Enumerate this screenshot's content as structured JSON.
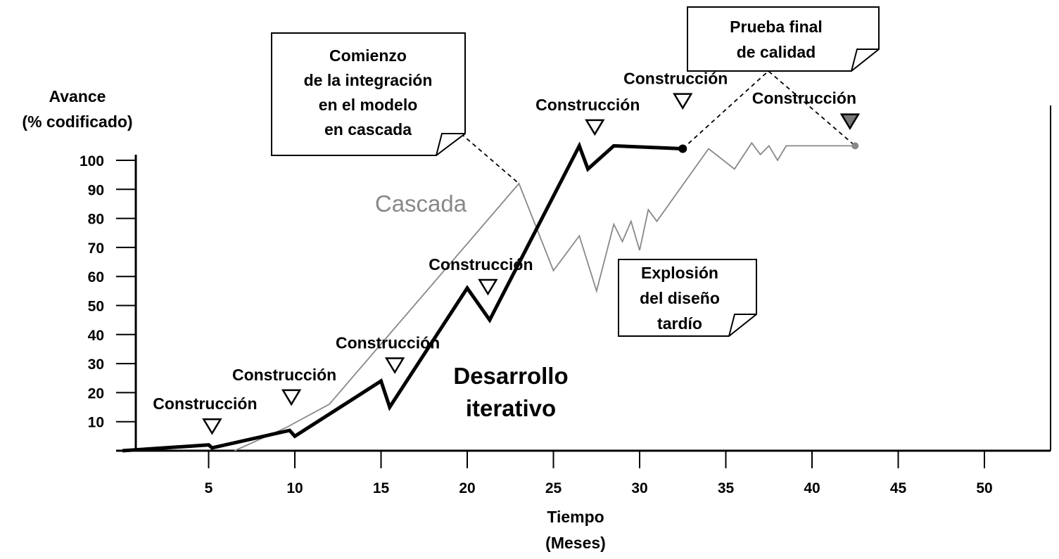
{
  "chart_data": {
    "type": "line",
    "xlabel": [
      "Tiempo",
      "(Meses)"
    ],
    "ylabel": [
      "Avance",
      "(% codificado)"
    ],
    "xlim": [
      0,
      53
    ],
    "ylim": [
      0,
      100
    ],
    "x_ticks": [
      5,
      10,
      15,
      20,
      25,
      30,
      35,
      40,
      45,
      50
    ],
    "y_ticks": [
      10,
      20,
      30,
      40,
      50,
      60,
      70,
      80,
      90,
      100
    ],
    "grid": false,
    "series": [
      {
        "name": "Cascada",
        "color": "#888888",
        "style": "thin",
        "x": [
          6.5,
          9.5,
          12,
          23,
          25,
          26.5,
          27.5,
          28.5,
          29,
          29.5,
          30,
          30.5,
          31,
          34,
          35.5,
          36.5,
          37,
          37.5,
          38,
          38.5,
          39,
          42.5
        ],
        "y": [
          0,
          8,
          16,
          92,
          62,
          74,
          55,
          78,
          72,
          79,
          69,
          83,
          79,
          104,
          97,
          106,
          102,
          105,
          100,
          105,
          105,
          105
        ]
      },
      {
        "name": "Desarrollo iterativo",
        "color": "#000000",
        "style": "thick",
        "x": [
          0,
          5,
          5.2,
          9.7,
          10,
          15,
          15.5,
          20,
          21.3,
          26.5,
          27,
          28.5,
          32.5
        ],
        "y": [
          0,
          2,
          1,
          7,
          5,
          24,
          15,
          56,
          45,
          105,
          97,
          105,
          104
        ]
      }
    ],
    "builds_iterative": [
      {
        "x": 5.2,
        "y_marker": 6,
        "label": "Construcción"
      },
      {
        "x": 9.8,
        "y_marker": 16,
        "label": "Construcción"
      },
      {
        "x": 15.8,
        "y_marker": 27,
        "label": "Construcción"
      },
      {
        "x": 21.2,
        "y_marker": 54,
        "label": "Construcción"
      },
      {
        "x": 27.4,
        "y_marker": 109,
        "label": "Construcción"
      },
      {
        "x": 32.5,
        "y_marker": 118,
        "label": "Construcción"
      }
    ],
    "build_cascada": {
      "x": 42.2,
      "y_marker": 111,
      "label": "Construcción"
    },
    "callouts": [
      {
        "lines": [
          "Comienzo",
          "de la integración",
          "en el modelo",
          "en cascada"
        ]
      },
      {
        "lines": [
          "Prueba final",
          "de calidad"
        ]
      },
      {
        "lines": [
          "Explosión",
          "del diseño",
          "tardío"
        ]
      }
    ],
    "labels": {
      "cascada": "Cascada",
      "iterativo": [
        "Desarrollo",
        "iterativo"
      ]
    }
  }
}
